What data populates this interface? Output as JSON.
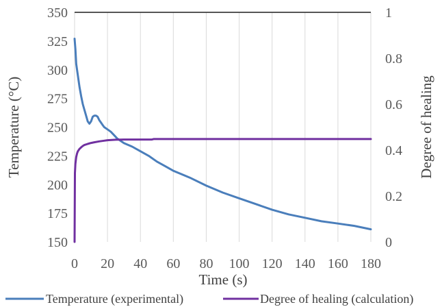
{
  "chart_data": {
    "type": "line",
    "title": "",
    "xlabel": "Time (s)",
    "ylabel_left": "Temperature (°C)",
    "ylabel_right": "Degree of healing",
    "xlim": [
      0,
      180
    ],
    "ylim_left": [
      150,
      350
    ],
    "ylim_right": [
      0,
      1
    ],
    "x_ticks": [
      "0",
      "20",
      "40",
      "60",
      "80",
      "100",
      "120",
      "140",
      "160",
      "180"
    ],
    "y_left_ticks": [
      "150",
      "175",
      "200",
      "225",
      "250",
      "275",
      "300",
      "325",
      "350"
    ],
    "y_right_ticks": [
      "0",
      "0.2",
      "0.4",
      "0.6",
      "0.8",
      "1"
    ],
    "grid": "vertical",
    "legend_position": "bottom",
    "series": [
      {
        "name": "Temperature (experimental)",
        "axis": "left",
        "color": "#4a7ebb",
        "x": [
          0,
          0.5,
          1,
          2,
          3,
          4,
          5,
          6,
          7,
          8,
          9,
          10,
          11,
          12,
          13,
          14,
          15,
          16,
          17,
          18,
          20,
          22,
          24,
          26,
          28,
          30,
          35,
          40,
          45,
          50,
          55,
          60,
          70,
          80,
          90,
          100,
          110,
          120,
          130,
          140,
          150,
          160,
          170,
          180
        ],
        "y": [
          327,
          318,
          305,
          295,
          285,
          277,
          270,
          265,
          260,
          255,
          253,
          255,
          259,
          260,
          260,
          259,
          256,
          254,
          252,
          250,
          248,
          246,
          243,
          240,
          238,
          236,
          233,
          229,
          225,
          220,
          216,
          212,
          206,
          199,
          193,
          188,
          183,
          178,
          174,
          171,
          168,
          166,
          164,
          161
        ]
      },
      {
        "name": "Degree of healing (calculation)",
        "axis": "right",
        "color": "#7030a0",
        "x": [
          0,
          0.2,
          0.5,
          1,
          1.5,
          2,
          3,
          4,
          5,
          6,
          8,
          10,
          12,
          15,
          18,
          20,
          25,
          30,
          40,
          47,
          48,
          60,
          80,
          100,
          120,
          140,
          160,
          180
        ],
        "y": [
          0,
          0.3,
          0.34,
          0.37,
          0.385,
          0.395,
          0.405,
          0.412,
          0.418,
          0.422,
          0.427,
          0.431,
          0.434,
          0.438,
          0.441,
          0.443,
          0.445,
          0.446,
          0.446,
          0.446,
          0.448,
          0.448,
          0.448,
          0.448,
          0.448,
          0.448,
          0.448,
          0.448
        ]
      }
    ]
  }
}
